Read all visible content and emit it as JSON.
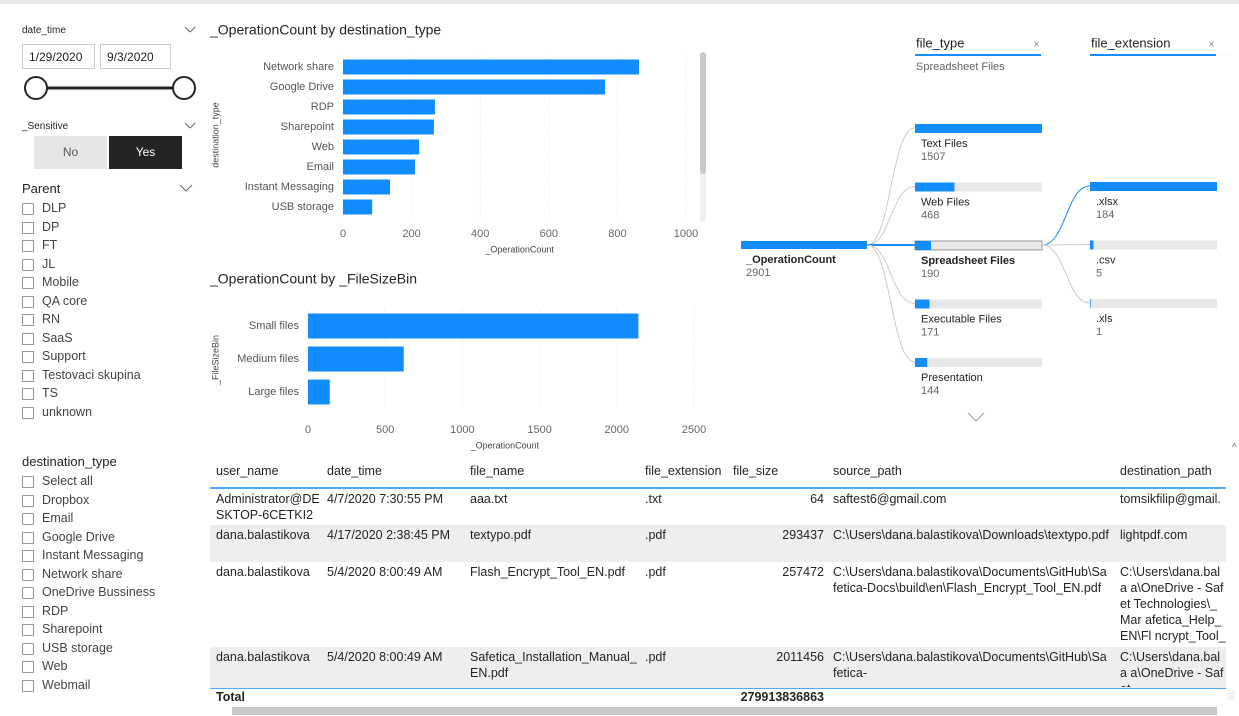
{
  "slicers": {
    "date_time": {
      "label": "date_time",
      "start": "1/29/2020",
      "end": "9/3/2020"
    },
    "sensitive": {
      "label": "_Sensitive",
      "options": [
        "No",
        "Yes"
      ],
      "selected": "Yes"
    },
    "parent": {
      "label": "Parent",
      "items": [
        "DLP",
        "DP",
        "FT",
        "JL",
        "Mobile",
        "QA core",
        "RN",
        "SaaS",
        "Support",
        "Testovaci skupina",
        "TS",
        "unknown"
      ]
    },
    "destination_type": {
      "label": "destination_type",
      "items": [
        "Select all",
        "Dropbox",
        "Email",
        "Google Drive",
        "Instant Messaging",
        "Network share",
        "OneDrive Bussiness",
        "RDP",
        "Sharepoint",
        "USB storage",
        "Web",
        "Webmail"
      ]
    }
  },
  "chart_data": [
    {
      "type": "bar",
      "horizontal": true,
      "title": "_OperationCount by destination_type",
      "x_label": "_OperationCount",
      "y_label": "destination_type",
      "categories": [
        "Network share",
        "Google Drive",
        "RDP",
        "Sharepoint",
        "Web",
        "Email",
        "Instant Messaging",
        "USB storage"
      ],
      "values": [
        863,
        764,
        268,
        265,
        222,
        210,
        137,
        85
      ],
      "color": "#118DFF",
      "xlim": [
        0,
        1030
      ],
      "xticks": [
        0,
        200,
        400,
        600,
        800,
        1000
      ],
      "grid": true
    },
    {
      "type": "bar",
      "horizontal": true,
      "title": "_OperationCount by _FileSizeBin",
      "x_label": "_OperationCount",
      "y_label": "_FileSizeBin",
      "categories": [
        "Small files",
        "Medium files",
        "Large files"
      ],
      "values": [
        2140,
        620,
        141
      ],
      "color": "#118DFF",
      "xlim": [
        0,
        2550
      ],
      "xticks": [
        0,
        500,
        1000,
        1500,
        2000,
        2500
      ],
      "grid": true
    }
  ],
  "decomposition_tree": {
    "root": {
      "label": "_OperationCount",
      "value": 2901
    },
    "levels": [
      {
        "header": "file_type",
        "subtitle": "Spreadsheet Files",
        "nodes": [
          {
            "label": "Text Files",
            "value": 1507
          },
          {
            "label": "Web Files",
            "value": 468
          },
          {
            "label": "Spreadsheet Files",
            "value": 190
          },
          {
            "label": "Executable Files",
            "value": 171
          },
          {
            "label": "Presentation",
            "value": 144
          }
        ]
      },
      {
        "header": "file_extension",
        "nodes": [
          {
            "label": ".xlsx",
            "value": 184
          },
          {
            "label": ".csv",
            "value": 5
          },
          {
            "label": ".xls",
            "value": 1
          }
        ]
      }
    ]
  },
  "table": {
    "columns": [
      "user_name",
      "date_time",
      "file_name",
      "file_extension",
      "file_size",
      "source_path",
      "destination_path"
    ],
    "rows": [
      [
        "Administrator@DESKTOP-6CETKI2",
        "4/7/2020 7:30:55 PM",
        "aaa.txt",
        ".txt",
        64,
        "saftest6@gmail.com",
        "tomsikfilip@gmail."
      ],
      [
        "dana.balastikova",
        "4/17/2020 2:38:45 PM",
        "textypo.pdf",
        ".pdf",
        293437,
        "C:\\Users\\dana.balastikova\\Downloads\\textypo.pdf",
        "lightpdf.com"
      ],
      [
        "dana.balastikova",
        "5/4/2020 8:00:49 AM",
        "Flash_Encrypt_Tool_EN.pdf",
        ".pdf",
        257472,
        "C:\\Users\\dana.balastikova\\Documents\\GitHub\\Safetica-Docs\\build\\en\\Flash_Encrypt_Tool_EN.pdf",
        "C:\\Users\\dana.bala a\\OneDrive - Safet Technologies\\_Mar afetica_Help_EN\\Fl ncrypt_Tool_EN.pd"
      ],
      [
        "dana.balastikova",
        "5/4/2020 8:00:49 AM",
        "Safetica_Installation_Manual_EN.pdf",
        ".pdf",
        2011456,
        "C:\\Users\\dana.balastikova\\Documents\\GitHub\\Safetica-",
        "C:\\Users\\dana.bala a\\OneDrive - Safet"
      ]
    ],
    "total_label": "Total",
    "total_value": 279913836863
  }
}
